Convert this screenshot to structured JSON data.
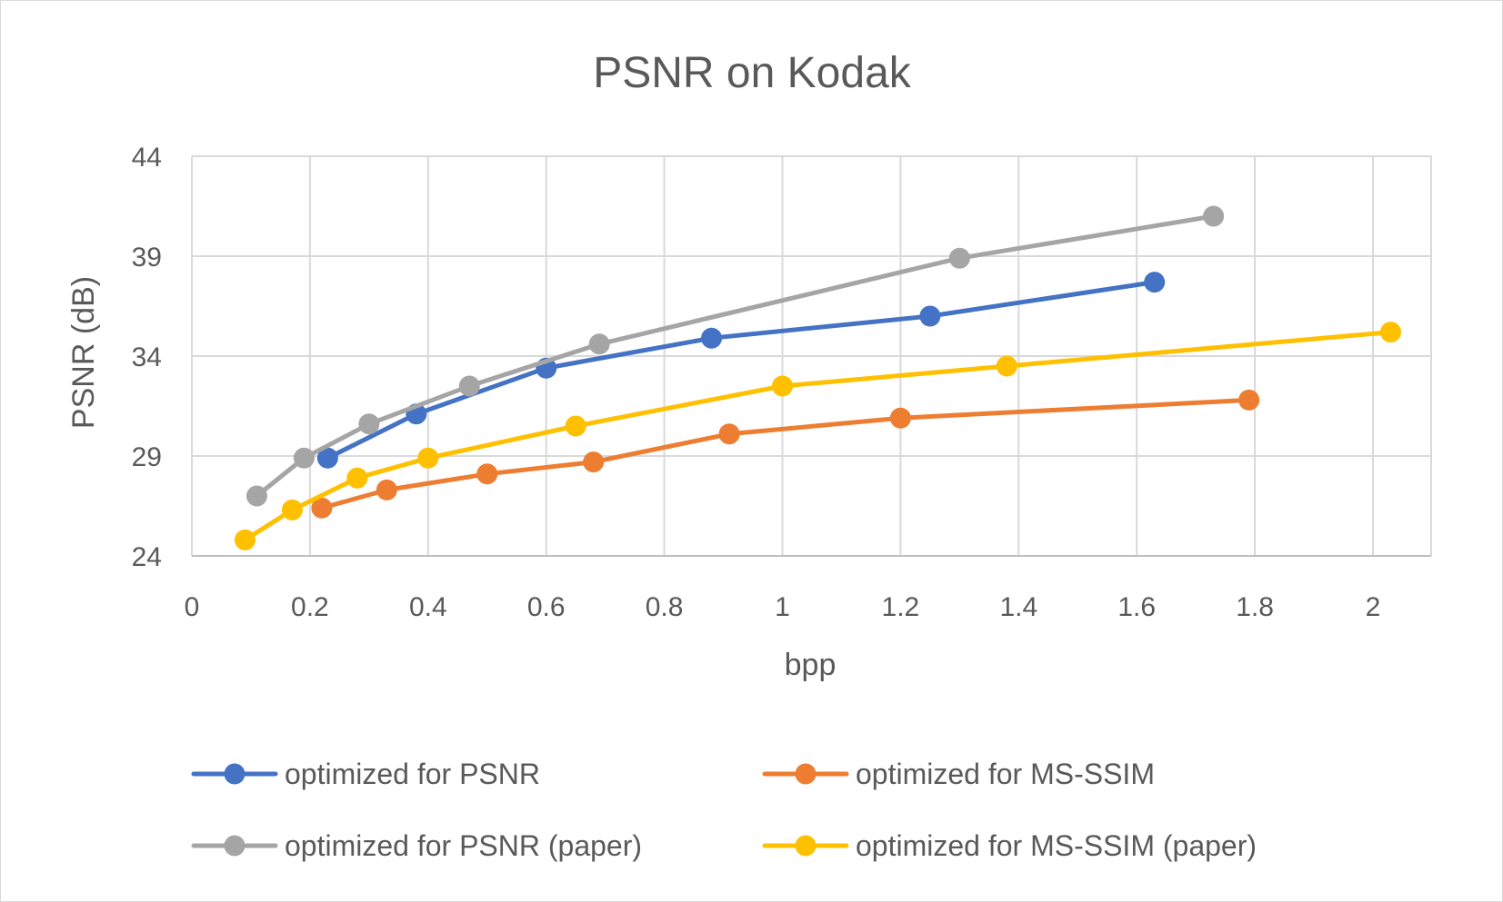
{
  "chart_data": {
    "type": "line",
    "title": "PSNR on Kodak",
    "xlabel": "bpp",
    "ylabel": "PSNR (dB)",
    "xlim": [
      0,
      2.1
    ],
    "ylim": [
      24,
      44
    ],
    "x_ticks": [
      "0",
      "0.2",
      "0.4",
      "0.6",
      "0.8",
      "1",
      "1.2",
      "1.4",
      "1.6",
      "1.8",
      "2"
    ],
    "x_tick_values": [
      0,
      0.2,
      0.4,
      0.6,
      0.8,
      1.0,
      1.2,
      1.4,
      1.6,
      1.8,
      2.0
    ],
    "y_ticks": [
      "24",
      "29",
      "34",
      "39",
      "44"
    ],
    "y_tick_values": [
      24,
      29,
      34,
      39,
      44
    ],
    "grid": true,
    "legend_position": "bottom",
    "series": [
      {
        "name": "optimized for PSNR",
        "color": "#4472c4",
        "x": [
          0.23,
          0.38,
          0.6,
          0.88,
          1.25,
          1.63
        ],
        "y": [
          28.9,
          31.1,
          33.4,
          34.9,
          36.0,
          37.7
        ]
      },
      {
        "name": "optimized for MS-SSIM",
        "color": "#ed7d31",
        "x": [
          0.22,
          0.33,
          0.5,
          0.68,
          0.91,
          1.2,
          1.79
        ],
        "y": [
          26.4,
          27.3,
          28.1,
          28.7,
          30.1,
          30.9,
          31.8
        ]
      },
      {
        "name": "optimized for PSNR (paper)",
        "color": "#a5a5a5",
        "x": [
          0.11,
          0.19,
          0.3,
          0.47,
          0.69,
          1.3,
          1.73
        ],
        "y": [
          27.0,
          28.9,
          30.6,
          32.5,
          34.6,
          38.9,
          41.0
        ]
      },
      {
        "name": "optimized for MS-SSIM (paper)",
        "color": "#ffc000",
        "x": [
          0.09,
          0.17,
          0.28,
          0.4,
          0.65,
          1.0,
          1.38,
          2.03
        ],
        "y": [
          24.8,
          26.3,
          27.9,
          28.9,
          30.5,
          32.5,
          33.5,
          35.2
        ]
      }
    ]
  }
}
